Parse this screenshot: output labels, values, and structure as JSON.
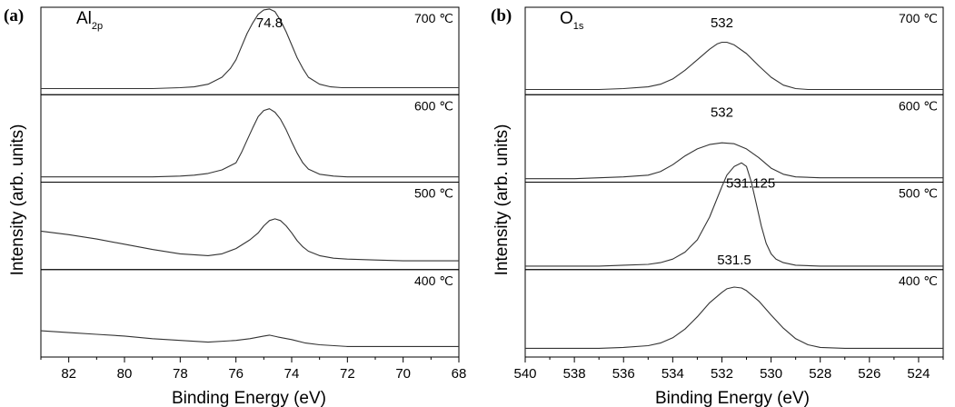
{
  "chart_data": [
    {
      "type": "line",
      "panel_letter": "(a)",
      "element": {
        "main": "Al",
        "subscript": "2p"
      },
      "xlabel": "Binding Energy (eV)",
      "ylabel": "Intensity (arb. units)",
      "xlim": [
        83,
        68
      ],
      "x_reversed": true,
      "xticks": [
        82,
        80,
        78,
        76,
        74,
        72,
        70,
        68
      ],
      "stacked_panels": 4,
      "y_units": "relative intensity within each stacked panel (0 = panel bottom, 1 = panel top)",
      "series": [
        {
          "name": "700 ℃",
          "label": "700 ℃",
          "peak_label": "74.8",
          "peak_label_x": 74.8,
          "x": [
            83,
            82,
            81,
            80,
            79,
            78,
            77.5,
            77,
            76.5,
            76.2,
            76,
            75.8,
            75.6,
            75.4,
            75.2,
            75,
            74.8,
            74.6,
            74.4,
            74.2,
            74,
            73.8,
            73.6,
            73.4,
            73,
            72.6,
            72.2,
            72,
            71.5,
            71,
            70,
            69,
            68
          ],
          "y": [
            0.07,
            0.07,
            0.07,
            0.07,
            0.07,
            0.08,
            0.09,
            0.12,
            0.2,
            0.3,
            0.4,
            0.55,
            0.7,
            0.82,
            0.92,
            0.97,
            0.98,
            0.95,
            0.85,
            0.72,
            0.57,
            0.42,
            0.3,
            0.2,
            0.12,
            0.09,
            0.08,
            0.08,
            0.08,
            0.08,
            0.08,
            0.08,
            0.08
          ]
        },
        {
          "name": "600 ℃",
          "label": "600 ℃",
          "x": [
            83,
            82,
            81,
            80,
            79,
            78,
            77.5,
            77,
            76.5,
            76,
            75.8,
            75.6,
            75.4,
            75.2,
            75,
            74.8,
            74.6,
            74.4,
            74.2,
            74,
            73.8,
            73.6,
            73.4,
            73,
            72.5,
            72,
            71,
            70,
            69,
            68
          ],
          "y": [
            0.06,
            0.06,
            0.06,
            0.06,
            0.06,
            0.07,
            0.08,
            0.1,
            0.14,
            0.22,
            0.34,
            0.48,
            0.62,
            0.75,
            0.82,
            0.84,
            0.8,
            0.72,
            0.6,
            0.46,
            0.33,
            0.22,
            0.15,
            0.09,
            0.07,
            0.06,
            0.06,
            0.06,
            0.06,
            0.06
          ]
        },
        {
          "name": "500 ℃",
          "label": "500 ℃",
          "x": [
            83,
            82,
            81,
            80,
            79,
            78,
            77,
            76.5,
            76,
            75.5,
            75.2,
            75,
            74.8,
            74.6,
            74.4,
            74.2,
            74,
            73.8,
            73.6,
            73.4,
            73,
            72.5,
            72,
            71,
            70,
            69,
            68
          ],
          "y": [
            0.44,
            0.4,
            0.35,
            0.29,
            0.23,
            0.18,
            0.16,
            0.18,
            0.24,
            0.34,
            0.42,
            0.5,
            0.56,
            0.58,
            0.56,
            0.5,
            0.42,
            0.33,
            0.26,
            0.21,
            0.16,
            0.13,
            0.12,
            0.11,
            0.1,
            0.1,
            0.1
          ]
        },
        {
          "name": "400 ℃",
          "label": "400 ℃",
          "x": [
            83,
            82,
            81,
            80,
            79,
            78,
            77,
            76,
            75.5,
            75,
            74.8,
            74.5,
            74,
            73.5,
            73,
            72,
            71,
            70,
            69,
            68
          ],
          "y": [
            0.3,
            0.28,
            0.26,
            0.24,
            0.21,
            0.19,
            0.17,
            0.19,
            0.21,
            0.24,
            0.25,
            0.23,
            0.2,
            0.16,
            0.14,
            0.12,
            0.12,
            0.12,
            0.12,
            0.12
          ]
        }
      ]
    },
    {
      "type": "line",
      "panel_letter": "(b)",
      "element": {
        "main": "O",
        "subscript": "1s"
      },
      "xlabel": "Binding Energy (eV)",
      "ylabel": "Intensity (arb. units)",
      "xlim": [
        540,
        523
      ],
      "x_reversed": true,
      "xticks": [
        540,
        538,
        536,
        534,
        532,
        530,
        528,
        526,
        524
      ],
      "stacked_panels": 4,
      "y_units": "relative intensity within each stacked panel (0 = panel bottom, 1 = panel top)",
      "series": [
        {
          "name": "700 ℃",
          "label": "700 ℃",
          "peak_label": "532",
          "peak_label_x": 532,
          "x": [
            540,
            539,
            538,
            537,
            536,
            535,
            534.5,
            534,
            533.5,
            533,
            532.5,
            532.2,
            532,
            531.8,
            531.5,
            531,
            530.5,
            530,
            529.5,
            529,
            528.5,
            528,
            527,
            526,
            525,
            524,
            523
          ],
          "y": [
            0.06,
            0.06,
            0.06,
            0.06,
            0.07,
            0.09,
            0.12,
            0.18,
            0.28,
            0.4,
            0.52,
            0.58,
            0.6,
            0.6,
            0.57,
            0.47,
            0.33,
            0.2,
            0.11,
            0.07,
            0.06,
            0.06,
            0.06,
            0.06,
            0.06,
            0.06,
            0.06
          ]
        },
        {
          "name": "600 ℃",
          "label": "600 ℃",
          "peak_label": "532",
          "peak_label_x": 532,
          "x": [
            540,
            539,
            538,
            537,
            536,
            535,
            534.5,
            534,
            533.5,
            533,
            532.5,
            532,
            531.5,
            531,
            530.5,
            530,
            529.5,
            529,
            528,
            527,
            526,
            525,
            524,
            523
          ],
          "y": [
            0.04,
            0.04,
            0.04,
            0.05,
            0.06,
            0.08,
            0.12,
            0.2,
            0.3,
            0.38,
            0.43,
            0.45,
            0.44,
            0.38,
            0.28,
            0.16,
            0.09,
            0.06,
            0.05,
            0.05,
            0.05,
            0.05,
            0.05,
            0.05
          ]
        },
        {
          "name": "500 ℃",
          "label": "500 ℃",
          "peak_label": "531.125",
          "peak_label_x": 531.125,
          "x": [
            540,
            539,
            538,
            537,
            536,
            535,
            534.5,
            534,
            533.5,
            533,
            532.5,
            532,
            531.8,
            531.5,
            531.2,
            531,
            530.8,
            530.6,
            530.4,
            530.2,
            530,
            529.8,
            529.5,
            529,
            528,
            527,
            526,
            525,
            524,
            523
          ],
          "y": [
            0.04,
            0.04,
            0.04,
            0.04,
            0.05,
            0.06,
            0.08,
            0.12,
            0.2,
            0.34,
            0.6,
            0.95,
            1.08,
            1.18,
            1.22,
            1.18,
            1.0,
            0.75,
            0.5,
            0.3,
            0.18,
            0.12,
            0.08,
            0.05,
            0.04,
            0.04,
            0.04,
            0.04,
            0.04,
            0.04
          ]
        },
        {
          "name": "400 ℃",
          "label": "400 ℃",
          "peak_label": "531.5",
          "peak_label_x": 531.5,
          "x": [
            540,
            539,
            538,
            537,
            536,
            535,
            534.5,
            534,
            533.5,
            533,
            532.5,
            532,
            531.8,
            531.5,
            531.2,
            531,
            530.5,
            530,
            529.5,
            529,
            528.5,
            528,
            527,
            526,
            525,
            524,
            523
          ],
          "y": [
            0.1,
            0.1,
            0.1,
            0.1,
            0.11,
            0.13,
            0.16,
            0.22,
            0.32,
            0.46,
            0.62,
            0.74,
            0.78,
            0.8,
            0.79,
            0.76,
            0.64,
            0.48,
            0.33,
            0.21,
            0.14,
            0.11,
            0.1,
            0.1,
            0.1,
            0.1,
            0.1
          ]
        }
      ]
    }
  ]
}
